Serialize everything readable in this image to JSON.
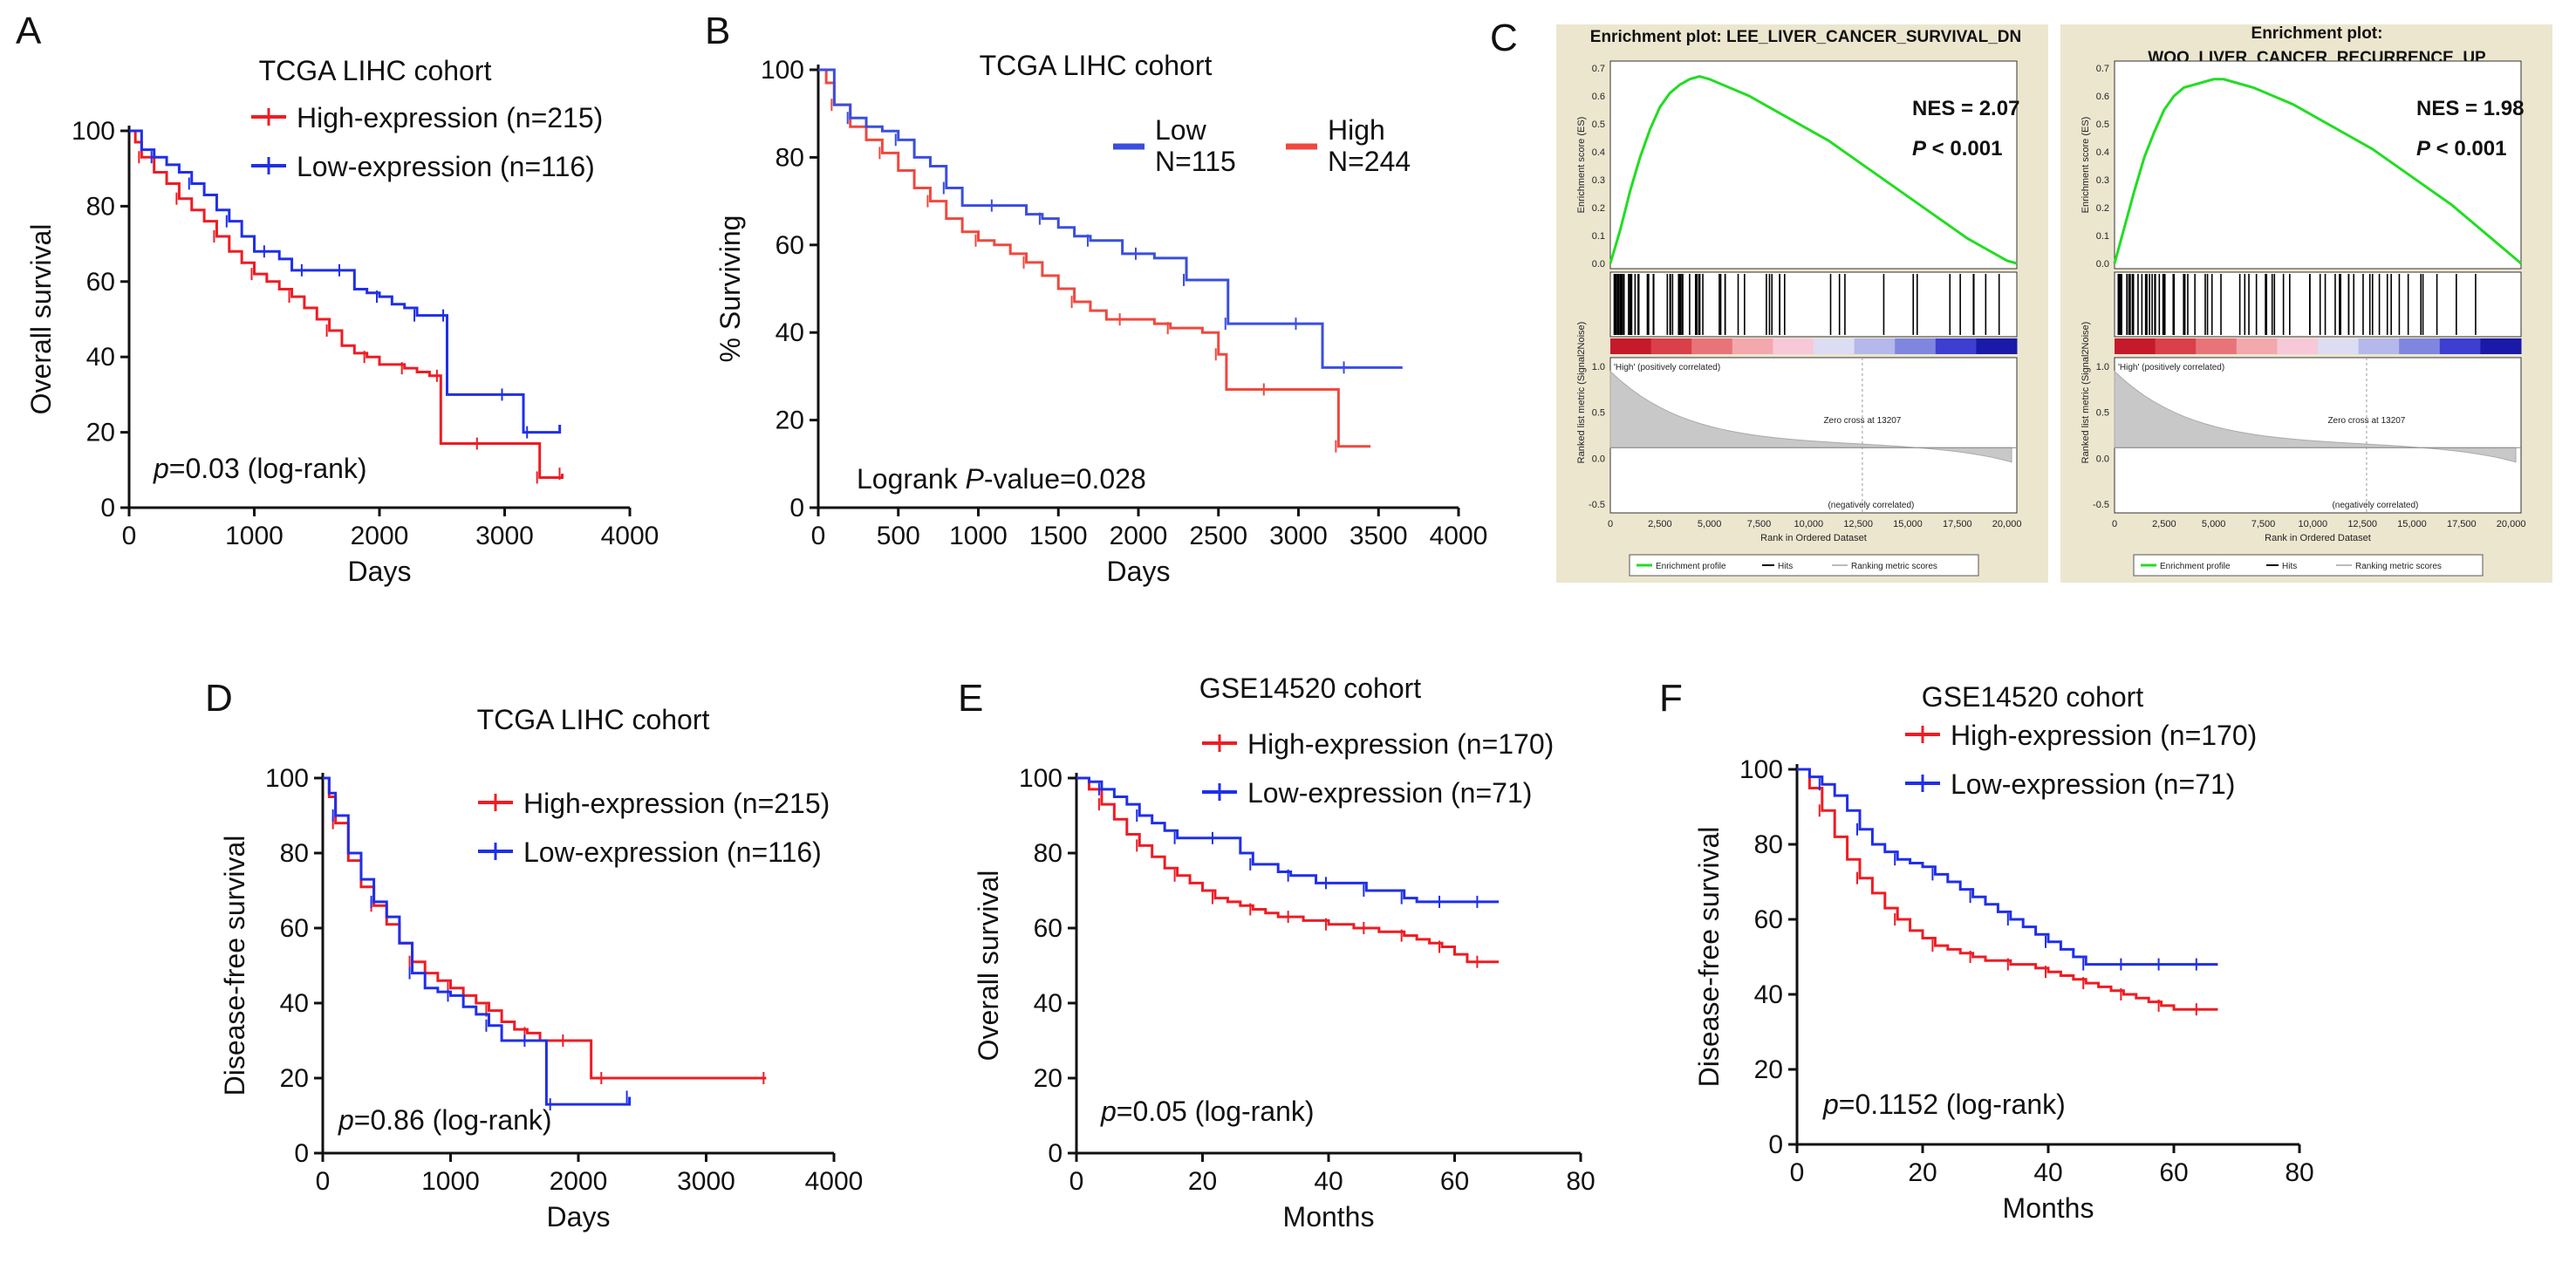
{
  "panel_labels": {
    "A": "A",
    "B": "B",
    "C": "C",
    "D": "D",
    "E": "E",
    "F": "F"
  },
  "colors": {
    "high": "#ee1c23",
    "low": "#1f2fe8",
    "b_high": "#f0483e",
    "b_low": "#3a4ee0",
    "es_line": "#22dd22",
    "gsea_bg": "#ece6cf"
  },
  "chart_data": [
    {
      "id": "A",
      "type": "line",
      "title": "TCGA LIHC cohort",
      "xlabel": "Days",
      "ylabel": "Overall survival",
      "xlim": [
        0,
        4000
      ],
      "ylim": [
        0,
        100
      ],
      "xticks": [
        "0",
        "1000",
        "2000",
        "3000",
        "4000"
      ],
      "yticks": [
        "0",
        "20",
        "40",
        "60",
        "80",
        "100"
      ],
      "annotation": {
        "italic": "p",
        "text": "=0.03 (log-rank)"
      },
      "series": [
        {
          "name": "High-expression (n=215)",
          "color": "#ee1c23",
          "x": [
            0,
            50,
            100,
            200,
            300,
            400,
            500,
            600,
            700,
            800,
            900,
            1000,
            1100,
            1200,
            1300,
            1400,
            1500,
            1600,
            1700,
            1800,
            1900,
            2000,
            2100,
            2200,
            2300,
            2400,
            2480,
            2490,
            2600,
            2800,
            3000,
            3200,
            3280,
            3300,
            3400,
            3460
          ],
          "y": [
            100,
            97,
            93,
            89,
            86,
            82,
            79,
            76,
            72,
            68,
            65,
            62,
            60,
            58,
            56,
            53,
            50,
            47,
            43,
            41,
            40,
            38,
            38,
            37,
            36,
            35,
            35,
            17,
            17,
            17,
            17,
            17,
            8,
            8,
            8,
            9
          ]
        },
        {
          "name": "Low-expression (n=116)",
          "color": "#1f2fe8",
          "x": [
            0,
            100,
            200,
            300,
            400,
            500,
            600,
            700,
            800,
            900,
            1000,
            1100,
            1200,
            1300,
            1400,
            1500,
            1600,
            1700,
            1800,
            1900,
            2000,
            2100,
            2200,
            2300,
            2400,
            2500,
            2530,
            2540,
            2800,
            3000,
            3100,
            3150,
            3200,
            3300,
            3440
          ],
          "y": [
            100,
            95,
            93,
            91,
            89,
            86,
            83,
            79,
            76,
            72,
            68,
            68,
            66,
            63,
            63,
            63,
            63,
            63,
            58,
            57,
            56,
            54,
            53,
            51,
            51,
            51,
            51,
            30,
            30,
            30,
            30,
            20,
            20,
            20,
            22
          ]
        }
      ]
    },
    {
      "id": "B",
      "type": "line",
      "title": "TCGA LIHC cohort",
      "xlabel": "Days",
      "ylabel": "% Surviving",
      "xlim": [
        0,
        4000
      ],
      "ylim": [
        0,
        100
      ],
      "xticks": [
        "0",
        "500",
        "1000",
        "1500",
        "2000",
        "2500",
        "3000",
        "3500",
        "4000"
      ],
      "yticks": [
        "0",
        "20",
        "40",
        "60",
        "80",
        "100"
      ],
      "annotation": {
        "prefix": "Logrank ",
        "italic": "P",
        "text": "-value=0.028"
      },
      "legend": [
        {
          "line1": "Low",
          "line2": "N=115",
          "color": "#3a4ee0"
        },
        {
          "line1": "High",
          "line2": "N=244",
          "color": "#f0483e"
        }
      ],
      "series": [
        {
          "name": "High",
          "color": "#f0483e",
          "x": [
            0,
            50,
            100,
            200,
            300,
            400,
            500,
            600,
            700,
            800,
            900,
            1000,
            1100,
            1200,
            1300,
            1400,
            1500,
            1600,
            1700,
            1800,
            1900,
            2000,
            2100,
            2200,
            2300,
            2400,
            2500,
            2550,
            2600,
            2800,
            3000,
            3200,
            3250,
            3300,
            3450
          ],
          "y": [
            100,
            97,
            92,
            87,
            84,
            81,
            77,
            73,
            70,
            66,
            63,
            61,
            60,
            58,
            56,
            53,
            50,
            47,
            45,
            43,
            43,
            43,
            42,
            41,
            41,
            40,
            35,
            27,
            27,
            27,
            27,
            27,
            14,
            14,
            14
          ]
        },
        {
          "name": "Low",
          "color": "#3a4ee0",
          "x": [
            0,
            100,
            200,
            300,
            400,
            500,
            600,
            700,
            800,
            900,
            1000,
            1100,
            1200,
            1300,
            1400,
            1500,
            1600,
            1700,
            1800,
            1900,
            2000,
            2100,
            2200,
            2300,
            2400,
            2500,
            2560,
            2600,
            2800,
            3000,
            3100,
            3150,
            3300,
            3500,
            3650
          ],
          "y": [
            100,
            92,
            89,
            87,
            86,
            84,
            80,
            78,
            73,
            69,
            69,
            69,
            69,
            67,
            66,
            64,
            62,
            61,
            61,
            58,
            58,
            57,
            57,
            52,
            52,
            52,
            42,
            42,
            42,
            42,
            42,
            32,
            32,
            32,
            32
          ]
        }
      ]
    },
    {
      "id": "C1",
      "type": "line",
      "title": "Enrichment plot: LEE_LIVER_CANCER_SURVIVAL_DN",
      "xlabel": "Rank in Ordered Dataset",
      "ylabel": "Enrichment score (ES)",
      "ylabel2": "Ranked list metric (Signal2Noise)",
      "xticks": [
        "0",
        "2,500",
        "5,000",
        "7,500",
        "10,000",
        "12,500",
        "15,000",
        "17,500",
        "20,000"
      ],
      "es_yticks": [
        "0.0",
        "0.1",
        "0.2",
        "0.3",
        "0.4",
        "0.5",
        "0.6",
        "0.7"
      ],
      "metric_yticks": [
        "1.0",
        "0.5",
        "0.0",
        "-0.5"
      ],
      "xlim": [
        0,
        20000
      ],
      "ylim": [
        0,
        0.7
      ],
      "nes": "NES = 2.07",
      "pval": {
        "italic": "P",
        "text": " < 0.001"
      },
      "pos_label": "'High' (positively correlated)",
      "neg_label": "(negatively correlated)",
      "zero_cross": "Zero cross at 13207",
      "legend": [
        "Enrichment profile",
        "Hits",
        "Ranking metric scores"
      ],
      "x": [
        0,
        500,
        1000,
        1500,
        2000,
        2500,
        3000,
        3500,
        4000,
        4500,
        5000,
        6000,
        7000,
        8000,
        9000,
        10000,
        11000,
        12000,
        13000,
        14000,
        15000,
        16000,
        17000,
        18000,
        19000,
        20000,
        20500
      ],
      "y": [
        0.0,
        0.12,
        0.26,
        0.38,
        0.48,
        0.56,
        0.61,
        0.64,
        0.66,
        0.67,
        0.66,
        0.63,
        0.6,
        0.56,
        0.52,
        0.48,
        0.44,
        0.39,
        0.34,
        0.29,
        0.24,
        0.19,
        0.14,
        0.09,
        0.05,
        0.01,
        0.0
      ]
    },
    {
      "id": "C2",
      "type": "line",
      "title": "Enrichment plot:",
      "title2": "WOO_LIVER_CANCER_RECURRENCE_UP",
      "xlabel": "Rank in Ordered Dataset",
      "ylabel": "Enrichment score (ES)",
      "ylabel2": "Ranked list metric (Signal2Noise)",
      "xticks": [
        "0",
        "2,500",
        "5,000",
        "7,500",
        "10,000",
        "12,500",
        "15,000",
        "17,500",
        "20,000"
      ],
      "es_yticks": [
        "0.0",
        "0.1",
        "0.2",
        "0.3",
        "0.4",
        "0.5",
        "0.6",
        "0.7"
      ],
      "metric_yticks": [
        "1.0",
        "0.5",
        "0.0",
        "-0.5"
      ],
      "xlim": [
        0,
        20000
      ],
      "ylim": [
        0,
        0.7
      ],
      "nes": "NES = 1.98",
      "pval": {
        "italic": "P",
        "text": " < 0.001"
      },
      "pos_label": "'High' (positively correlated)",
      "neg_label": "(negatively correlated)",
      "zero_cross": "Zero cross at 13207",
      "legend": [
        "Enrichment profile",
        "Hits",
        "Ranking metric scores"
      ],
      "x": [
        0,
        500,
        1000,
        1500,
        2000,
        2500,
        3000,
        3500,
        4000,
        4500,
        5000,
        5500,
        6000,
        7000,
        8000,
        9000,
        10000,
        11000,
        12000,
        13000,
        14000,
        15000,
        16000,
        17000,
        18000,
        19000,
        20000,
        20500
      ],
      "y": [
        0.0,
        0.13,
        0.26,
        0.38,
        0.47,
        0.55,
        0.6,
        0.63,
        0.64,
        0.65,
        0.66,
        0.66,
        0.65,
        0.63,
        0.6,
        0.57,
        0.53,
        0.49,
        0.45,
        0.41,
        0.36,
        0.31,
        0.26,
        0.21,
        0.15,
        0.09,
        0.03,
        0.0
      ]
    },
    {
      "id": "D",
      "type": "line",
      "title": "TCGA LIHC cohort",
      "xlabel": "Days",
      "ylabel": "Disease-free survival",
      "xlim": [
        0,
        4000
      ],
      "ylim": [
        0,
        100
      ],
      "xticks": [
        "0",
        "1000",
        "2000",
        "3000",
        "4000"
      ],
      "yticks": [
        "0",
        "20",
        "40",
        "60",
        "80",
        "100"
      ],
      "annotation": {
        "italic": "p",
        "text": "=0.86 (log-rank)"
      },
      "series": [
        {
          "name": "High-expression (n=215)",
          "color": "#ee1c23",
          "x": [
            0,
            50,
            100,
            200,
            300,
            400,
            500,
            600,
            700,
            800,
            900,
            1000,
            1100,
            1200,
            1300,
            1400,
            1500,
            1600,
            1700,
            1800,
            1900,
            2000,
            2100,
            2200,
            2500,
            3000,
            3470
          ],
          "y": [
            100,
            95,
            88,
            78,
            71,
            66,
            61,
            56,
            51,
            48,
            46,
            44,
            42,
            40,
            38,
            35,
            33,
            32,
            30,
            30,
            30,
            30,
            20,
            20,
            20,
            20,
            20
          ]
        },
        {
          "name": "Low-expression (n=116)",
          "color": "#1f2fe8",
          "x": [
            0,
            50,
            100,
            200,
            300,
            400,
            500,
            600,
            700,
            800,
            900,
            1000,
            1100,
            1200,
            1300,
            1400,
            1500,
            1600,
            1700,
            1750,
            1800,
            2000,
            2200,
            2400
          ],
          "y": [
            100,
            96,
            90,
            80,
            73,
            67,
            63,
            56,
            48,
            44,
            43,
            42,
            39,
            37,
            34,
            30,
            30,
            30,
            30,
            13,
            13,
            13,
            13,
            15
          ]
        }
      ]
    },
    {
      "id": "E",
      "type": "line",
      "title": "GSE14520 cohort",
      "xlabel": "Months",
      "ylabel": "Overall survival",
      "xlim": [
        0,
        80
      ],
      "ylim": [
        0,
        100
      ],
      "xticks": [
        "0",
        "20",
        "40",
        "60",
        "80"
      ],
      "yticks": [
        "0",
        "20",
        "40",
        "60",
        "80",
        "100"
      ],
      "annotation": {
        "italic": "p",
        "text": "=0.05 (log-rank)"
      },
      "series": [
        {
          "name": "High-expression (n=170)",
          "color": "#ee1c23",
          "x": [
            0,
            2,
            4,
            6,
            8,
            10,
            12,
            14,
            16,
            18,
            20,
            22,
            24,
            26,
            28,
            30,
            32,
            34,
            36,
            38,
            40,
            42,
            44,
            46,
            48,
            50,
            52,
            54,
            56,
            58,
            60,
            62,
            64,
            67
          ],
          "y": [
            100,
            97,
            93,
            89,
            85,
            82,
            79,
            76,
            74,
            72,
            70,
            68,
            67,
            66,
            65,
            64,
            63,
            63,
            62,
            62,
            61,
            61,
            60,
            60,
            59,
            59,
            58,
            57,
            56,
            55,
            53,
            51,
            51,
            51
          ]
        },
        {
          "name": "Low-expression (n=71)",
          "color": "#1f2fe8",
          "x": [
            0,
            2,
            4,
            6,
            8,
            10,
            12,
            14,
            16,
            18,
            20,
            22,
            24,
            26,
            28,
            30,
            32,
            34,
            36,
            38,
            40,
            42,
            44,
            46,
            48,
            50,
            52,
            54,
            56,
            58,
            60,
            62,
            64,
            67
          ],
          "y": [
            100,
            99,
            97,
            95,
            93,
            90,
            88,
            86,
            84,
            84,
            84,
            84,
            84,
            80,
            77,
            77,
            75,
            74,
            74,
            72,
            72,
            72,
            72,
            70,
            70,
            70,
            68,
            67,
            67,
            67,
            67,
            67,
            67,
            67
          ]
        }
      ]
    },
    {
      "id": "F",
      "type": "line",
      "title": "GSE14520 cohort",
      "xlabel": "Months",
      "ylabel": "Disease-free survival",
      "xlim": [
        0,
        80
      ],
      "ylim": [
        0,
        100
      ],
      "xticks": [
        "0",
        "20",
        "40",
        "60",
        "80"
      ],
      "yticks": [
        "0",
        "20",
        "40",
        "60",
        "80",
        "100"
      ],
      "annotation": {
        "italic": "p",
        "text": "=0.1152 (log-rank)"
      },
      "series": [
        {
          "name": "High-expression (n=170)",
          "color": "#ee1c23",
          "x": [
            0,
            2,
            4,
            6,
            8,
            10,
            12,
            14,
            16,
            18,
            20,
            22,
            24,
            26,
            28,
            30,
            32,
            34,
            36,
            38,
            40,
            42,
            44,
            46,
            48,
            50,
            52,
            54,
            56,
            58,
            60,
            62,
            64,
            67
          ],
          "y": [
            100,
            95,
            89,
            82,
            76,
            71,
            67,
            63,
            60,
            57,
            55,
            53,
            52,
            51,
            50,
            49,
            49,
            48,
            48,
            47,
            46,
            45,
            44,
            43,
            42,
            41,
            40,
            39,
            38,
            37,
            36,
            36,
            36,
            36
          ]
        },
        {
          "name": "Low-expression (n=71)",
          "color": "#1f2fe8",
          "x": [
            0,
            2,
            4,
            6,
            8,
            10,
            12,
            14,
            16,
            18,
            20,
            22,
            24,
            26,
            28,
            30,
            32,
            34,
            36,
            38,
            40,
            42,
            44,
            46,
            48,
            50,
            52,
            54,
            56,
            58,
            60,
            62,
            64,
            67
          ],
          "y": [
            100,
            98,
            96,
            93,
            89,
            84,
            80,
            78,
            76,
            75,
            74,
            72,
            70,
            68,
            66,
            64,
            62,
            60,
            58,
            56,
            54,
            52,
            50,
            48,
            48,
            48,
            48,
            48,
            48,
            48,
            48,
            48,
            48,
            48
          ]
        }
      ]
    }
  ]
}
